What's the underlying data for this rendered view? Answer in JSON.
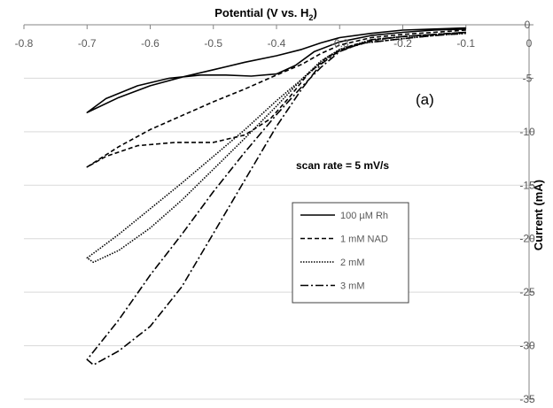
{
  "chart_data": {
    "type": "line",
    "title": "Potential (V vs. H",
    "title_subscript": "2",
    "title_suffix": ")",
    "xlabel": "Potential (V vs. H2)",
    "ylabel": "Current (mA)",
    "xlim": [
      -0.8,
      0
    ],
    "ylim": [
      -35,
      0
    ],
    "x_ticks": [
      -0.8,
      -0.7,
      -0.6,
      -0.5,
      -0.4,
      -0.3,
      -0.2,
      -0.1,
      0
    ],
    "x_tick_labels": [
      "-0.8",
      "-0.7",
      "-0.6",
      "-0.5",
      "-0.4",
      "-0.3",
      "-0.2",
      "-0.1",
      "0"
    ],
    "y_ticks": [
      0,
      -5,
      -10,
      -15,
      -20,
      -25,
      -30,
      -35
    ],
    "y_tick_labels": [
      "0",
      "-5",
      "-10",
      "-15",
      "-20",
      "-25",
      "-30",
      "-35"
    ],
    "x_axis_position": "top",
    "y_axis_position": "right",
    "grid": true,
    "panel_label": "(a)",
    "annotation": "scan rate = 5 mV/s",
    "legend_position": "center-right",
    "series": [
      {
        "name": "100 µM Rh",
        "dash": "solid",
        "x": [
          -0.1,
          -0.15,
          -0.2,
          -0.25,
          -0.3,
          -0.33,
          -0.36,
          -0.4,
          -0.45,
          -0.5,
          -0.55,
          -0.6,
          -0.65,
          -0.7,
          -0.67,
          -0.62,
          -0.57,
          -0.52,
          -0.48,
          -0.44,
          -0.4,
          -0.37,
          -0.34,
          -0.3,
          -0.25,
          -0.2,
          -0.15,
          -0.1
        ],
        "y": [
          -0.3,
          -0.4,
          -0.5,
          -0.8,
          -1.2,
          -1.7,
          -2.3,
          -2.9,
          -3.5,
          -4.2,
          -4.9,
          -5.7,
          -6.8,
          -8.2,
          -6.9,
          -5.7,
          -5.0,
          -4.7,
          -4.7,
          -4.8,
          -4.6,
          -3.8,
          -2.5,
          -1.6,
          -1.0,
          -0.7,
          -0.5,
          -0.4
        ]
      },
      {
        "name": "1 mM NAD",
        "dash": "dashed",
        "x": [
          -0.1,
          -0.15,
          -0.2,
          -0.25,
          -0.3,
          -0.33,
          -0.36,
          -0.4,
          -0.45,
          -0.5,
          -0.55,
          -0.6,
          -0.65,
          -0.7,
          -0.67,
          -0.62,
          -0.56,
          -0.5,
          -0.45,
          -0.41,
          -0.38,
          -0.35,
          -0.32,
          -0.28,
          -0.24,
          -0.2,
          -0.15,
          -0.1
        ],
        "y": [
          -0.5,
          -0.7,
          -0.9,
          -1.2,
          -1.9,
          -2.7,
          -3.7,
          -4.7,
          -6.0,
          -7.2,
          -8.5,
          -9.8,
          -11.4,
          -13.3,
          -12.3,
          -11.3,
          -11.0,
          -11.0,
          -10.3,
          -8.8,
          -6.8,
          -4.6,
          -3.0,
          -1.9,
          -1.4,
          -1.1,
          -0.9,
          -0.7
        ]
      },
      {
        "name": "2 mM",
        "dash": "dotted",
        "x": [
          -0.1,
          -0.15,
          -0.2,
          -0.25,
          -0.3,
          -0.33,
          -0.36,
          -0.4,
          -0.45,
          -0.5,
          -0.55,
          -0.6,
          -0.65,
          -0.7,
          -0.69,
          -0.65,
          -0.6,
          -0.55,
          -0.5,
          -0.45,
          -0.4,
          -0.36,
          -0.33,
          -0.3,
          -0.26,
          -0.2,
          -0.15,
          -0.1
        ],
        "y": [
          -0.7,
          -0.9,
          -1.1,
          -1.4,
          -2.3,
          -3.6,
          -5.1,
          -7.1,
          -9.8,
          -12.3,
          -14.8,
          -17.2,
          -19.6,
          -21.8,
          -22.2,
          -21.1,
          -19.0,
          -16.4,
          -13.5,
          -10.6,
          -7.6,
          -5.1,
          -3.4,
          -2.3,
          -1.7,
          -1.3,
          -1.0,
          -0.8
        ]
      },
      {
        "name": "3 mM",
        "dash": "dashdot",
        "x": [
          -0.1,
          -0.15,
          -0.2,
          -0.25,
          -0.3,
          -0.33,
          -0.36,
          -0.4,
          -0.45,
          -0.5,
          -0.55,
          -0.6,
          -0.65,
          -0.7,
          -0.69,
          -0.65,
          -0.6,
          -0.55,
          -0.5,
          -0.45,
          -0.4,
          -0.36,
          -0.33,
          -0.3,
          -0.26,
          -0.2,
          -0.15,
          -0.1
        ],
        "y": [
          -0.7,
          -0.9,
          -1.1,
          -1.4,
          -2.5,
          -4.0,
          -5.8,
          -8.4,
          -11.9,
          -15.6,
          -19.6,
          -23.4,
          -27.6,
          -31.3,
          -31.8,
          -30.5,
          -28.2,
          -24.5,
          -19.5,
          -14.5,
          -9.5,
          -6.0,
          -3.7,
          -2.4,
          -1.7,
          -1.3,
          -1.0,
          -0.8
        ]
      }
    ]
  }
}
